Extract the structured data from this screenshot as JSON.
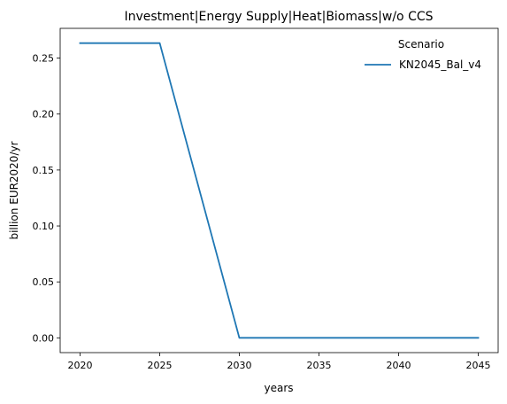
{
  "chart_data": {
    "type": "line",
    "title": "Investment|Energy Supply|Heat|Biomass|w/o CCS",
    "xlabel": "years",
    "ylabel": "billion EUR2020/yr",
    "x": [
      2020,
      2025,
      2030,
      2035,
      2040,
      2045
    ],
    "x_ticks": [
      "2020",
      "2025",
      "2030",
      "2035",
      "2040",
      "2045"
    ],
    "y_ticks": [
      "0.00",
      "0.05",
      "0.10",
      "0.15",
      "0.20",
      "0.25"
    ],
    "xlim": [
      2018.75,
      2046.25
    ],
    "ylim": [
      -0.0132,
      0.2766
    ],
    "grid": false,
    "legend": {
      "title": "Scenario",
      "placement": "top-right"
    },
    "series": [
      {
        "name": "KN2045_Bal_v4",
        "color": "#1f77b4",
        "values": [
          0.2634,
          0.2634,
          0.0,
          0.0,
          0.0,
          0.0
        ]
      }
    ]
  }
}
